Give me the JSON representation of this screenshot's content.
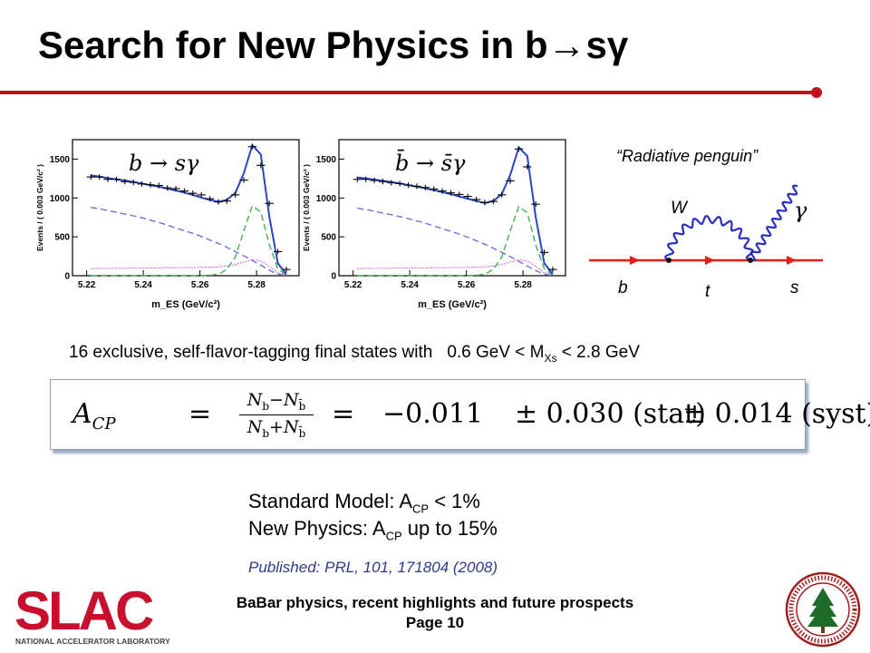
{
  "slide": {
    "title": "Search for New Physics in b→sγ",
    "page_label": "Page 10",
    "footer_title": "BaBar physics, recent highlights and future prospects"
  },
  "colors": {
    "accent": "#c0131b",
    "fit": "#2a46c8",
    "published": "#2f3a86"
  },
  "diagram": {
    "caption": "“Radiative penguin”",
    "labels": {
      "W": "W",
      "gamma": "γ",
      "b": "b",
      "t": "t",
      "s": "s"
    }
  },
  "text": {
    "states_text": "16 exclusive, self-flavor-tagging final states with",
    "mass_range_pre": "0.6 GeV < M",
    "mass_sub": "Xs",
    "mass_range_post": " < 2.8 GeV",
    "sm_pre": "Standard Model: A",
    "sm_sub": "CP",
    "sm_post": " < 1%",
    "np_pre": "New Physics: A",
    "np_sub": "CP",
    "np_post": " up to 15%",
    "published": "Published: PRL, 101, 171804 (2008)"
  },
  "formula": {
    "lhs": "A",
    "lhs_sub": "CP",
    "eq": "=",
    "frac_num": "Nᵦ−Nᵦ̄",
    "frac_num_a": "N",
    "frac_num_a_sub": "b",
    "frac_num_op": "−",
    "frac_num_b": "N",
    "frac_num_b_sub": "b̄",
    "frac_den_a": "N",
    "frac_den_a_sub": "b",
    "frac_den_op": "+",
    "frac_den_b": "N",
    "frac_den_b_sub": "b̄",
    "eq2": "=",
    "value": "−0.011",
    "stat": "± 0.030 (stat)",
    "syst": "± 0.014 (syst)"
  },
  "logos": {
    "slac": "SLAC",
    "slac_sub": "NATIONAL ACCELERATOR LABORATORY"
  },
  "chart_data": [
    {
      "type": "line",
      "label": "b → sγ",
      "xlabel": "m_ES (GeV/c²)",
      "ylabel": "Events / ( 0.003 GeV/c² )",
      "xlim": [
        5.215,
        5.295
      ],
      "ylim": [
        0,
        1750
      ],
      "xticks": [
        "5.22",
        "5.24",
        "5.26",
        "5.28"
      ],
      "yticks": [
        "0",
        "500",
        "1000",
        "1500"
      ],
      "x": [
        5.2215,
        5.2245,
        5.2275,
        5.2305,
        5.2335,
        5.2365,
        5.2395,
        5.2425,
        5.2455,
        5.2485,
        5.2515,
        5.2545,
        5.2575,
        5.2605,
        5.2635,
        5.2665,
        5.2695,
        5.2725,
        5.2755,
        5.2785,
        5.2815,
        5.2845,
        5.2875,
        5.2905
      ],
      "series": [
        {
          "name": "data",
          "values": [
            1270,
            1270,
            1240,
            1240,
            1210,
            1200,
            1180,
            1170,
            1160,
            1130,
            1120,
            1090,
            1060,
            1040,
            990,
            950,
            960,
            1040,
            1230,
            1660,
            1420,
            930,
            310,
            80
          ]
        },
        {
          "name": "total fit",
          "values": [
            1290,
            1275,
            1255,
            1240,
            1225,
            1205,
            1185,
            1165,
            1145,
            1120,
            1095,
            1070,
            1040,
            1005,
            975,
            950,
            975,
            1065,
            1320,
            1680,
            1560,
            760,
            160,
            20
          ]
        },
        {
          "name": "background",
          "values": [
            880,
            860,
            840,
            815,
            795,
            770,
            745,
            715,
            685,
            650,
            615,
            580,
            545,
            505,
            460,
            415,
            365,
            310,
            255,
            195,
            135,
            70,
            20,
            0
          ]
        },
        {
          "name": "signal",
          "values": [
            0,
            0,
            0,
            0,
            0,
            0,
            0,
            0,
            0,
            0,
            0,
            0,
            0,
            0,
            5,
            20,
            80,
            240,
            580,
            900,
            820,
            400,
            90,
            10
          ]
        },
        {
          "name": "peaking background",
          "values": [
            90,
            95,
            92,
            97,
            94,
            100,
            96,
            101,
            98,
            104,
            100,
            106,
            104,
            110,
            108,
            115,
            125,
            145,
            175,
            205,
            190,
            120,
            40,
            10
          ]
        }
      ]
    },
    {
      "type": "line",
      "label": "b̄ → s̄γ",
      "xlabel": "m_ES (GeV/c²)",
      "ylabel": "Events / ( 0.003 GeV/c² )",
      "xlim": [
        5.215,
        5.295
      ],
      "ylim": [
        0,
        1750
      ],
      "xticks": [
        "5.22",
        "5.24",
        "5.26",
        "5.28"
      ],
      "yticks": [
        "0",
        "500",
        "1000",
        "1500"
      ],
      "x": [
        5.2215,
        5.2245,
        5.2275,
        5.2305,
        5.2335,
        5.2365,
        5.2395,
        5.2425,
        5.2455,
        5.2485,
        5.2515,
        5.2545,
        5.2575,
        5.2605,
        5.2635,
        5.2665,
        5.2695,
        5.2725,
        5.2755,
        5.2785,
        5.2815,
        5.2845,
        5.2875,
        5.2905
      ],
      "series": [
        {
          "name": "data",
          "values": [
            1240,
            1240,
            1225,
            1210,
            1195,
            1185,
            1165,
            1150,
            1135,
            1115,
            1090,
            1065,
            1045,
            1020,
            980,
            940,
            955,
            1040,
            1220,
            1630,
            1400,
            920,
            300,
            80
          ]
        },
        {
          "name": "total fit",
          "values": [
            1265,
            1250,
            1235,
            1220,
            1205,
            1185,
            1165,
            1145,
            1125,
            1100,
            1075,
            1050,
            1020,
            990,
            960,
            935,
            960,
            1050,
            1300,
            1650,
            1540,
            750,
            160,
            20
          ]
        },
        {
          "name": "background",
          "values": [
            870,
            850,
            830,
            805,
            785,
            760,
            735,
            705,
            675,
            640,
            605,
            570,
            535,
            495,
            450,
            405,
            355,
            300,
            245,
            185,
            125,
            65,
            20,
            0
          ]
        },
        {
          "name": "signal",
          "values": [
            0,
            0,
            0,
            0,
            0,
            0,
            0,
            0,
            0,
            0,
            0,
            0,
            0,
            0,
            5,
            20,
            80,
            240,
            580,
            890,
            810,
            395,
            90,
            10
          ]
        },
        {
          "name": "peaking background",
          "values": [
            90,
            95,
            92,
            97,
            94,
            100,
            96,
            101,
            98,
            104,
            100,
            106,
            104,
            110,
            108,
            115,
            125,
            145,
            175,
            205,
            190,
            120,
            40,
            10
          ]
        }
      ]
    }
  ]
}
